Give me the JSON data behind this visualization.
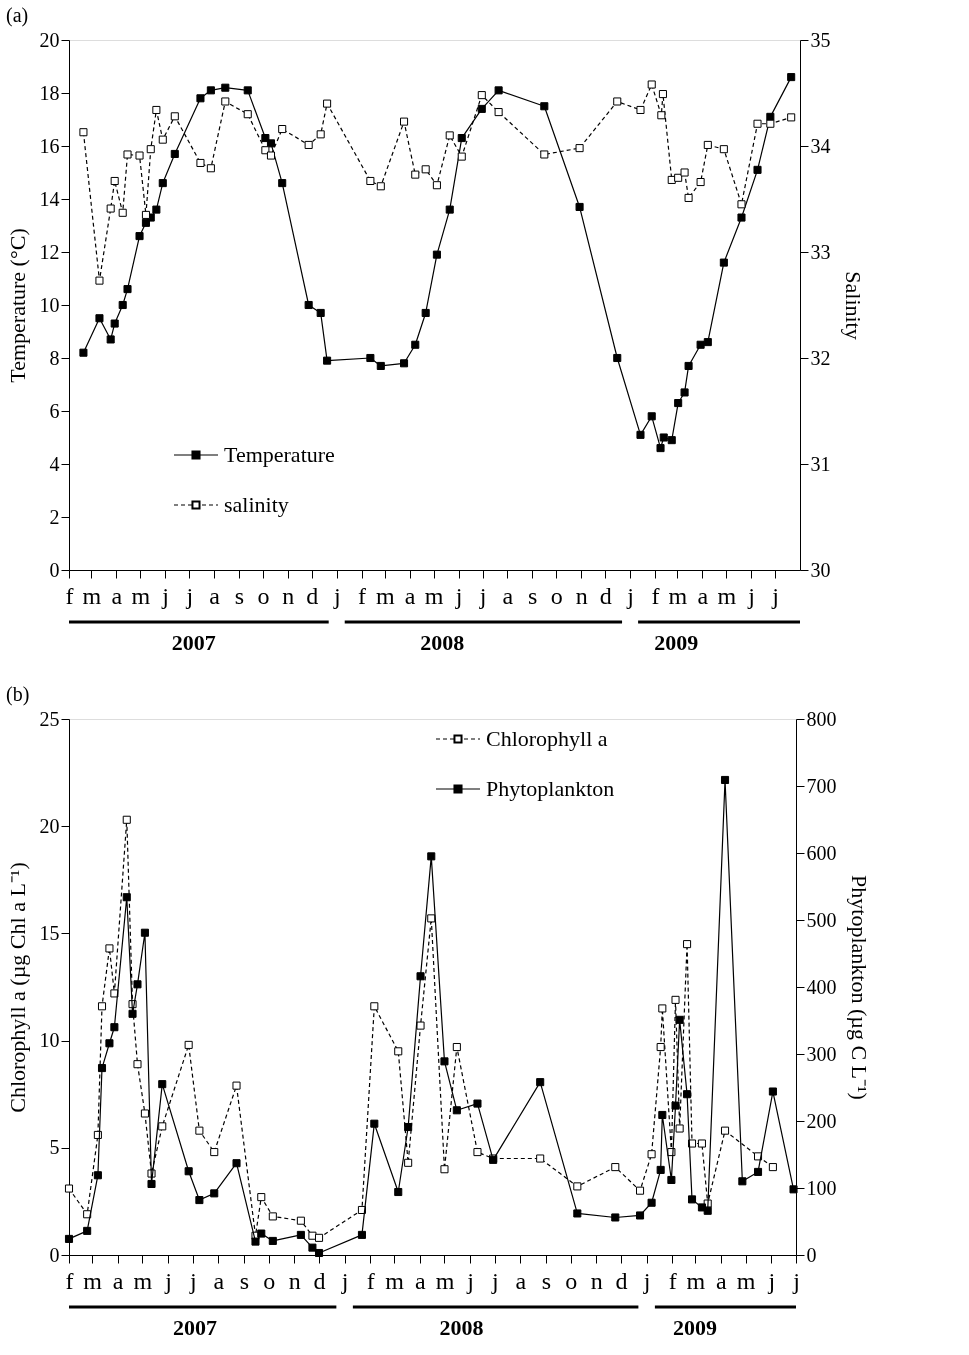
{
  "chart_data": [
    {
      "type": "line",
      "title": "(a)",
      "ylabel": "Temperature (°C)",
      "y2label": "Salinity",
      "xlim": [
        "2007-02-01",
        "2009-08-01"
      ],
      "ylim": [
        0,
        20
      ],
      "yticks": [
        0,
        2,
        4,
        6,
        8,
        10,
        12,
        14,
        16,
        18,
        20
      ],
      "y2lim": [
        30,
        35
      ],
      "y2ticks": [
        30,
        31,
        32,
        33,
        34,
        35
      ],
      "xticks": [
        {
          "value": "2007-07-06",
          "label": "2007"
        },
        {
          "value": "2008-05-11",
          "label": "2008"
        },
        {
          "value": "2009-02-27",
          "label": "2009"
        }
      ],
      "annotations": [
        "f",
        "m",
        "a",
        "m",
        "j",
        "j",
        "a",
        "s",
        "o",
        "n",
        "d",
        "j",
        "f",
        "m",
        "a",
        "m",
        "j",
        "j",
        "a",
        "s",
        "o",
        "n",
        "d",
        "j",
        "f",
        "m",
        "a",
        "m",
        "j",
        "j"
      ],
      "marker": "square",
      "legend": "bottom left",
      "grid": false,
      "series": [
        {
          "name": "Temperature",
          "color": "#000000",
          "line_style": "solid",
          "axis": "y",
          "x": [
            "2007-02-19",
            "2007-03-11",
            "2007-03-25",
            "2007-03-30",
            "2007-04-09",
            "2007-04-15",
            "2007-04-30",
            "2007-05-08",
            "2007-05-14",
            "2007-05-21",
            "2007-05-29",
            "2007-06-13",
            "2007-07-15",
            "2007-07-28",
            "2007-08-15",
            "2007-09-12",
            "2007-10-04",
            "2007-10-11",
            "2007-10-25",
            "2007-11-27",
            "2007-12-12",
            "2007-12-20",
            "2008-02-12",
            "2008-02-25",
            "2008-03-25",
            "2008-04-08",
            "2008-04-21",
            "2008-05-05",
            "2008-05-21",
            "2008-06-05",
            "2008-06-30",
            "2008-07-21",
            "2008-09-16",
            "2008-10-30",
            "2008-12-16",
            "2009-01-14",
            "2009-01-28",
            "2009-02-08",
            "2009-02-12",
            "2009-02-22",
            "2009-03-02",
            "2009-03-10",
            "2009-03-15",
            "2009-03-30",
            "2009-04-08",
            "2009-04-28",
            "2009-05-20",
            "2009-06-09",
            "2009-06-25",
            "2009-07-21"
          ],
          "values": [
            8.2,
            9.5,
            8.7,
            9.3,
            10.0,
            10.6,
            12.6,
            13.1,
            13.3,
            13.6,
            14.6,
            15.7,
            17.8,
            18.1,
            18.2,
            18.1,
            16.3,
            16.1,
            14.6,
            10.0,
            9.7,
            7.9,
            8.0,
            7.7,
            7.8,
            8.5,
            9.7,
            11.9,
            13.6,
            16.3,
            17.4,
            18.1,
            17.5,
            13.7,
            8.0,
            5.1,
            5.8,
            4.6,
            5.0,
            4.9,
            6.3,
            6.7,
            7.7,
            8.5,
            8.6,
            11.6,
            13.3,
            15.1,
            17.1,
            18.6
          ]
        },
        {
          "name": "salinity",
          "color": "#000000",
          "line_style": "dashed",
          "axis": "y2",
          "x": [
            "2007-02-19",
            "2007-03-11",
            "2007-03-25",
            "2007-03-30",
            "2007-04-09",
            "2007-04-15",
            "2007-04-30",
            "2007-05-08",
            "2007-05-14",
            "2007-05-21",
            "2007-05-29",
            "2007-06-13",
            "2007-07-15",
            "2007-07-28",
            "2007-08-15",
            "2007-09-12",
            "2007-10-04",
            "2007-10-11",
            "2007-10-25",
            "2007-11-27",
            "2007-12-12",
            "2007-12-20",
            "2008-02-12",
            "2008-02-25",
            "2008-03-25",
            "2008-04-08",
            "2008-04-21",
            "2008-05-05",
            "2008-05-21",
            "2008-06-05",
            "2008-06-30",
            "2008-07-21",
            "2008-09-16",
            "2008-10-30",
            "2008-12-16",
            "2009-01-14",
            "2009-01-28",
            "2009-02-09",
            "2009-02-11",
            "2009-02-22",
            "2009-03-02",
            "2009-03-10",
            "2009-03-15",
            "2009-03-30",
            "2009-04-08",
            "2009-04-28",
            "2009-05-20",
            "2009-06-09",
            "2009-06-25",
            "2009-07-21"
          ],
          "values": [
            34.13,
            32.73,
            33.41,
            33.67,
            33.37,
            33.92,
            33.91,
            33.35,
            33.97,
            34.34,
            34.06,
            34.28,
            33.84,
            33.79,
            34.42,
            34.3,
            33.96,
            33.91,
            34.16,
            34.01,
            34.11,
            34.4,
            33.67,
            33.62,
            34.23,
            33.73,
            33.78,
            33.63,
            34.1,
            33.9,
            34.48,
            34.32,
            33.92,
            33.98,
            34.42,
            34.34,
            34.58,
            34.29,
            34.49,
            33.68,
            33.7,
            33.75,
            33.51,
            33.66,
            34.01,
            33.97,
            33.45,
            34.21,
            34.21,
            34.27
          ]
        }
      ]
    },
    {
      "type": "line",
      "title": "(b)",
      "ylabel": "Chlorophyll a (µg Chl a L⁻¹)",
      "y2label": "Phytoplankton (µg C L⁻¹)",
      "xlim": [
        "2007-02-01",
        "2009-07-01"
      ],
      "ylim": [
        0,
        25
      ],
      "yticks": [
        0,
        5,
        10,
        15,
        20,
        25
      ],
      "y2lim": [
        0,
        800
      ],
      "y2ticks": [
        0,
        100,
        200,
        300,
        400,
        500,
        600,
        700,
        800
      ],
      "xticks": [
        {
          "value": "2007-07-03",
          "label": "2007"
        },
        {
          "value": "2008-05-21",
          "label": "2008"
        },
        {
          "value": "2009-02-28",
          "label": "2009"
        }
      ],
      "annotations": [
        "f",
        "m",
        "a",
        "m",
        "j",
        "j",
        "a",
        "s",
        "o",
        "n",
        "d",
        "j",
        "f",
        "m",
        "a",
        "m",
        "j",
        "j",
        "a",
        "s",
        "o",
        "n",
        "d",
        "j",
        "f",
        "m",
        "a",
        "m",
        "j",
        "j"
      ],
      "marker": "square",
      "legend": "top right",
      "grid": false,
      "series": [
        {
          "name": "Chlorophyll a",
          "color": "#000000",
          "line_style": "dashed",
          "axis": "y",
          "x": [
            "2007-02-01",
            "2007-02-23",
            "2007-03-08",
            "2007-03-13",
            "2007-03-22",
            "2007-03-28",
            "2007-04-12",
            "2007-04-19",
            "2007-04-25",
            "2007-05-04",
            "2007-05-12",
            "2007-05-25",
            "2007-06-26",
            "2007-07-09",
            "2007-07-27",
            "2007-08-23",
            "2007-09-15",
            "2007-09-22",
            "2007-10-06",
            "2007-11-09",
            "2007-11-23",
            "2007-12-01",
            "2008-01-22",
            "2008-02-06",
            "2008-03-06",
            "2008-03-18",
            "2008-04-02",
            "2008-04-15",
            "2008-05-01",
            "2008-05-16",
            "2008-06-10",
            "2008-06-29",
            "2008-08-25",
            "2008-10-09",
            "2008-11-24",
            "2008-12-24",
            "2009-01-07",
            "2009-01-18",
            "2009-01-20",
            "2009-01-31",
            "2009-02-05",
            "2009-02-10",
            "2009-02-19",
            "2009-02-25",
            "2009-03-09",
            "2009-03-16",
            "2009-04-06",
            "2009-05-16",
            "2009-06-03"
          ],
          "values": [
            3.1,
            1.9,
            5.6,
            11.6,
            14.3,
            12.2,
            20.3,
            11.7,
            8.9,
            6.6,
            3.8,
            6.0,
            9.8,
            5.8,
            4.8,
            7.9,
            0.9,
            2.7,
            1.8,
            1.6,
            0.9,
            0.8,
            2.1,
            11.6,
            9.5,
            4.3,
            10.7,
            15.7,
            4.0,
            9.7,
            4.8,
            4.5,
            4.5,
            3.2,
            4.1,
            3.0,
            4.7,
            9.7,
            11.5,
            4.8,
            11.9,
            5.9,
            14.5,
            5.2,
            5.2,
            2.4,
            5.8,
            4.6,
            4.1
          ]
        },
        {
          "name": "Phytoplankton",
          "color": "#000000",
          "line_style": "solid",
          "axis": "y2",
          "x": [
            "2007-02-01",
            "2007-02-23",
            "2007-03-08",
            "2007-03-13",
            "2007-03-22",
            "2007-03-28",
            "2007-04-12",
            "2007-04-19",
            "2007-04-25",
            "2007-05-04",
            "2007-05-12",
            "2007-05-25",
            "2007-06-26",
            "2007-07-09",
            "2007-07-27",
            "2007-08-23",
            "2007-09-15",
            "2007-09-22",
            "2007-10-06",
            "2007-11-09",
            "2007-11-23",
            "2007-12-01",
            "2008-01-22",
            "2008-02-06",
            "2008-03-06",
            "2008-03-18",
            "2008-04-02",
            "2008-04-15",
            "2008-05-01",
            "2008-05-16",
            "2008-06-10",
            "2008-06-29",
            "2008-08-25",
            "2008-10-09",
            "2008-11-24",
            "2008-12-24",
            "2009-01-07",
            "2009-01-18",
            "2009-01-20",
            "2009-01-31",
            "2009-02-05",
            "2009-02-10",
            "2009-02-19",
            "2009-02-25",
            "2009-03-09",
            "2009-03-16",
            "2009-04-06",
            "2009-04-27",
            "2009-05-16",
            "2009-06-03",
            "2009-06-28"
          ],
          "values": [
            24,
            36,
            119,
            279,
            316,
            340,
            534,
            360,
            404,
            481,
            106,
            255,
            125,
            82,
            92,
            137,
            20,
            32,
            21,
            30,
            11,
            3,
            30,
            196,
            94,
            191,
            416,
            595,
            289,
            216,
            226,
            142,
            258,
            62,
            56,
            59,
            78,
            127,
            209,
            112,
            223,
            351,
            240,
            83,
            71,
            66,
            709,
            110,
            124,
            244,
            98
          ]
        }
      ]
    }
  ]
}
